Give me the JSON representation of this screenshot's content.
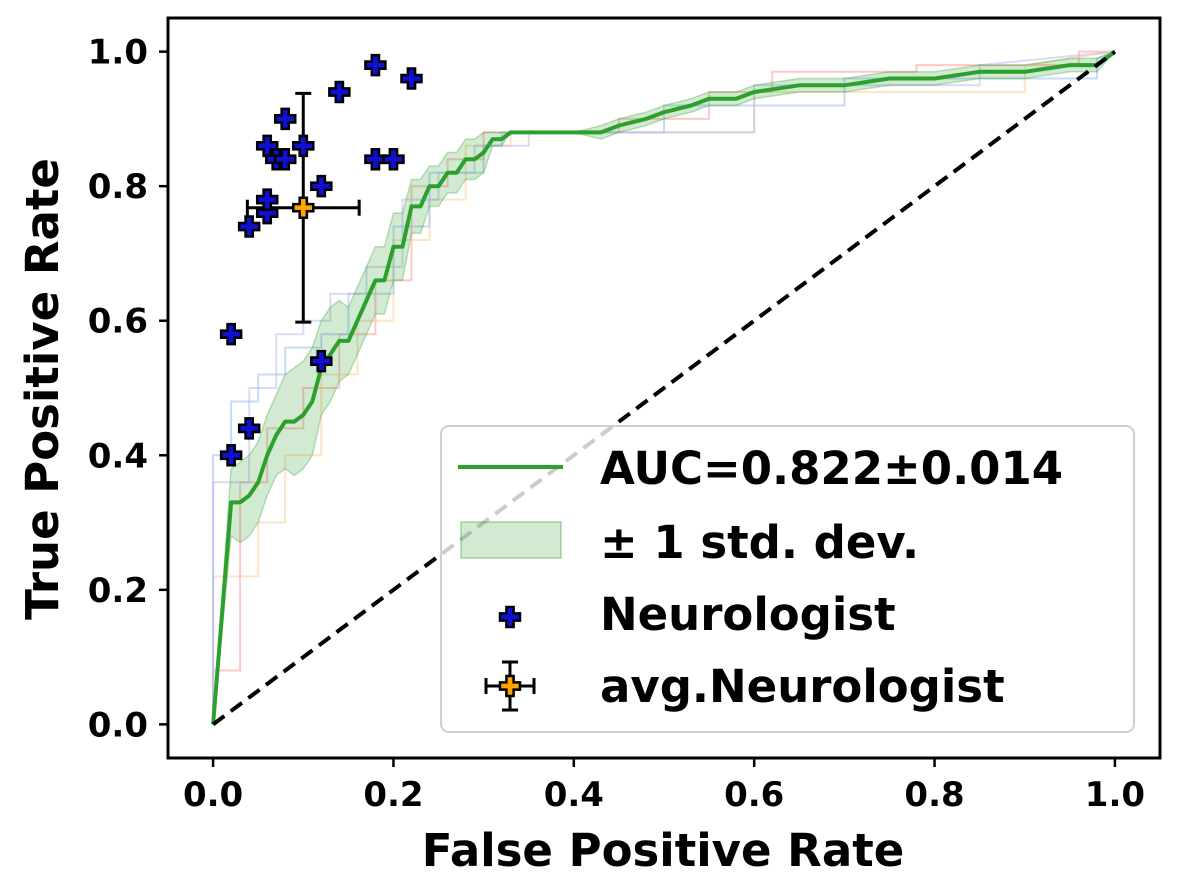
{
  "chart_data": {
    "type": "line",
    "title": "",
    "xlabel": "False Positive Rate",
    "ylabel": "True Positive Rate",
    "xlim": [
      -0.05,
      1.05
    ],
    "ylim": [
      -0.05,
      1.05
    ],
    "xticks": [
      "0.0",
      "0.2",
      "0.4",
      "0.6",
      "0.8",
      "1.0"
    ],
    "yticks": [
      "0.0",
      "0.2",
      "0.4",
      "0.6",
      "0.8",
      "1.0"
    ],
    "grid": false,
    "legend_position": "lower-right",
    "legend": [
      {
        "label": "AUC=0.822±0.014",
        "kind": "line",
        "color": "#2ca02c"
      },
      {
        "label": "± 1 std. dev.",
        "kind": "band",
        "color": "#2ca02c"
      },
      {
        "label": "Neurologist",
        "kind": "marker",
        "color": "#1010d0"
      },
      {
        "label": "avg.Neurologist",
        "kind": "errorbar",
        "color": "#ffa500"
      }
    ],
    "mean_roc": {
      "name": "AUC=0.822±0.014",
      "color": "#2ca02c",
      "x": [
        0,
        0.02,
        0.03,
        0.04,
        0.05,
        0.06,
        0.07,
        0.08,
        0.09,
        0.1,
        0.11,
        0.12,
        0.13,
        0.14,
        0.15,
        0.16,
        0.17,
        0.18,
        0.19,
        0.2,
        0.21,
        0.22,
        0.23,
        0.24,
        0.25,
        0.26,
        0.27,
        0.28,
        0.29,
        0.3,
        0.31,
        0.32,
        0.33,
        0.35,
        0.4,
        0.43,
        0.45,
        0.48,
        0.5,
        0.53,
        0.55,
        0.58,
        0.6,
        0.65,
        0.7,
        0.75,
        0.8,
        0.85,
        0.9,
        0.95,
        0.98,
        1.0
      ],
      "y": [
        0,
        0.33,
        0.33,
        0.34,
        0.36,
        0.4,
        0.43,
        0.45,
        0.45,
        0.46,
        0.48,
        0.53,
        0.55,
        0.57,
        0.57,
        0.6,
        0.63,
        0.66,
        0.66,
        0.71,
        0.71,
        0.77,
        0.77,
        0.8,
        0.8,
        0.82,
        0.82,
        0.84,
        0.84,
        0.85,
        0.87,
        0.87,
        0.88,
        0.88,
        0.88,
        0.88,
        0.89,
        0.9,
        0.91,
        0.92,
        0.93,
        0.93,
        0.94,
        0.95,
        0.95,
        0.96,
        0.96,
        0.97,
        0.97,
        0.98,
        0.98,
        1.0
      ]
    },
    "std_band": {
      "name": "± 1 std. dev.",
      "color": "#2ca02c",
      "upper": [
        0,
        0.38,
        0.39,
        0.4,
        0.42,
        0.46,
        0.49,
        0.52,
        0.53,
        0.54,
        0.56,
        0.6,
        0.62,
        0.63,
        0.62,
        0.65,
        0.68,
        0.71,
        0.71,
        0.76,
        0.76,
        0.81,
        0.81,
        0.83,
        0.83,
        0.85,
        0.85,
        0.87,
        0.87,
        0.88,
        0.88,
        0.88,
        0.88,
        0.88,
        0.88,
        0.89,
        0.9,
        0.91,
        0.92,
        0.93,
        0.94,
        0.94,
        0.95,
        0.96,
        0.96,
        0.97,
        0.97,
        0.98,
        0.98,
        0.99,
        0.99,
        1.0
      ],
      "lower": [
        0,
        0.28,
        0.27,
        0.28,
        0.3,
        0.34,
        0.37,
        0.38,
        0.37,
        0.38,
        0.4,
        0.46,
        0.48,
        0.51,
        0.52,
        0.55,
        0.58,
        0.61,
        0.61,
        0.66,
        0.66,
        0.73,
        0.73,
        0.77,
        0.77,
        0.79,
        0.79,
        0.81,
        0.81,
        0.82,
        0.86,
        0.86,
        0.88,
        0.88,
        0.88,
        0.87,
        0.88,
        0.89,
        0.9,
        0.91,
        0.92,
        0.92,
        0.93,
        0.94,
        0.94,
        0.95,
        0.95,
        0.96,
        0.96,
        0.97,
        0.97,
        1.0
      ]
    },
    "fold_curves": [
      {
        "color": "#ff9999",
        "x": [
          0,
          0,
          0.03,
          0.03,
          0.06,
          0.06,
          0.1,
          0.1,
          0.14,
          0.14,
          0.18,
          0.18,
          0.22,
          0.22,
          0.26,
          0.26,
          0.3,
          0.3,
          0.34,
          0.34,
          0.45,
          0.45,
          0.55,
          0.55,
          0.62,
          0.62,
          0.78,
          0.78,
          0.96,
          0.96,
          1.0
        ],
        "y": [
          0,
          0.08,
          0.08,
          0.36,
          0.36,
          0.44,
          0.44,
          0.5,
          0.5,
          0.58,
          0.58,
          0.66,
          0.66,
          0.8,
          0.8,
          0.84,
          0.84,
          0.88,
          0.88,
          0.88,
          0.88,
          0.9,
          0.9,
          0.94,
          0.94,
          0.97,
          0.97,
          0.98,
          0.98,
          1.0,
          1.0
        ]
      },
      {
        "color": "#ffcc99",
        "x": [
          0,
          0,
          0.05,
          0.05,
          0.08,
          0.08,
          0.12,
          0.12,
          0.16,
          0.16,
          0.2,
          0.2,
          0.24,
          0.24,
          0.28,
          0.28,
          0.33,
          0.33,
          0.6,
          0.6,
          0.9,
          0.9,
          1.0
        ],
        "y": [
          0,
          0.22,
          0.22,
          0.3,
          0.3,
          0.4,
          0.4,
          0.52,
          0.52,
          0.6,
          0.6,
          0.72,
          0.72,
          0.78,
          0.78,
          0.86,
          0.86,
          0.88,
          0.88,
          0.94,
          0.94,
          0.98,
          1.0
        ]
      },
      {
        "color": "#99bbee",
        "x": [
          0,
          0,
          0.02,
          0.02,
          0.05,
          0.05,
          0.08,
          0.08,
          0.12,
          0.12,
          0.15,
          0.15,
          0.2,
          0.2,
          0.24,
          0.24,
          0.3,
          0.3,
          0.32,
          0.32,
          0.5,
          0.5,
          0.7,
          0.7,
          0.98,
          0.98,
          1.0
        ],
        "y": [
          0,
          0.4,
          0.4,
          0.48,
          0.48,
          0.52,
          0.52,
          0.56,
          0.56,
          0.58,
          0.58,
          0.64,
          0.64,
          0.74,
          0.74,
          0.82,
          0.82,
          0.86,
          0.86,
          0.88,
          0.88,
          0.92,
          0.92,
          0.96,
          0.96,
          0.99,
          1.0
        ]
      },
      {
        "color": "#bbbbee",
        "x": [
          0,
          0,
          0.04,
          0.04,
          0.07,
          0.07,
          0.1,
          0.1,
          0.13,
          0.13,
          0.17,
          0.17,
          0.21,
          0.21,
          0.25,
          0.25,
          0.29,
          0.29,
          0.35,
          0.35,
          0.6,
          0.6,
          0.85,
          0.85,
          1.0
        ],
        "y": [
          0,
          0.36,
          0.36,
          0.5,
          0.5,
          0.58,
          0.58,
          0.6,
          0.6,
          0.64,
          0.64,
          0.68,
          0.68,
          0.78,
          0.78,
          0.82,
          0.82,
          0.86,
          0.86,
          0.88,
          0.88,
          0.95,
          0.95,
          0.98,
          1.0
        ]
      }
    ],
    "chance_line": {
      "x": [
        0,
        1
      ],
      "y": [
        0,
        1
      ],
      "color": "#000000",
      "style": "dashed"
    },
    "neurologists": {
      "name": "Neurologist",
      "color": "#1010d0",
      "x": [
        0.02,
        0.02,
        0.04,
        0.04,
        0.06,
        0.06,
        0.06,
        0.07,
        0.08,
        0.08,
        0.1,
        0.12,
        0.12,
        0.14,
        0.18,
        0.18,
        0.2,
        0.22
      ],
      "y": [
        0.4,
        0.58,
        0.44,
        0.74,
        0.76,
        0.78,
        0.86,
        0.84,
        0.9,
        0.84,
        0.86,
        0.54,
        0.8,
        0.94,
        0.98,
        0.84,
        0.84,
        0.96
      ]
    },
    "avg_neurologist": {
      "name": "avg.Neurologist",
      "color": "#ffa500",
      "x": 0.1,
      "y": 0.768,
      "xerr": 0.062,
      "yerr": 0.17
    }
  }
}
